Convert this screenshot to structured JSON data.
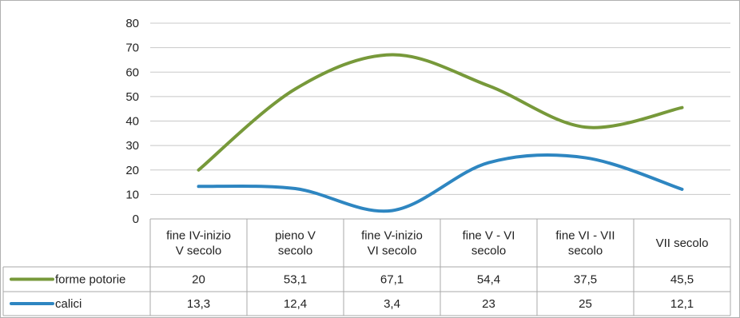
{
  "chart_data": {
    "type": "line",
    "categories": [
      [
        "fine IV-inizio",
        "V secolo"
      ],
      [
        "pieno V",
        "secolo"
      ],
      [
        "fine V-inizio",
        "VI secolo"
      ],
      [
        "fine V - VI",
        "secolo"
      ],
      [
        "fine VI - VII",
        "secolo"
      ],
      [
        "VII secolo"
      ]
    ],
    "series": [
      {
        "name": "forme potorie",
        "color": "#77993a",
        "values": [
          20,
          53.1,
          67.1,
          54.4,
          37.5,
          45.5
        ],
        "labels": [
          "20",
          "53,1",
          "67,1",
          "54,4",
          "37,5",
          "45,5"
        ]
      },
      {
        "name": "calici",
        "color": "#2e86c1",
        "values": [
          13.3,
          12.4,
          3.4,
          23,
          25,
          12.1
        ],
        "labels": [
          "13,3",
          "12,4",
          "3,4",
          "23",
          "25",
          "12,1"
        ]
      }
    ],
    "ylim": [
      0,
      80
    ],
    "yticks": [
      0,
      10,
      20,
      30,
      40,
      50,
      60,
      70,
      80
    ],
    "ytick_labels": [
      "0",
      "10",
      "20",
      "30",
      "40",
      "50",
      "60",
      "70",
      "80"
    ],
    "grid": true,
    "smooth": true,
    "legend": "data-table",
    "data_table": true
  }
}
